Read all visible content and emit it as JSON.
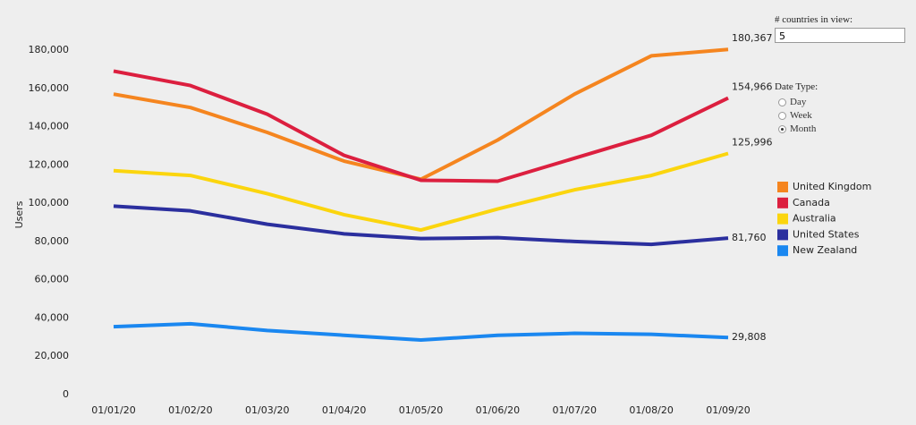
{
  "chart_data": {
    "type": "line",
    "y_label": "Users",
    "categories": [
      "01/01/20",
      "01/02/20",
      "01/03/20",
      "01/04/20",
      "01/05/20",
      "01/06/20",
      "01/07/20",
      "01/08/20",
      "01/09/20"
    ],
    "series": [
      {
        "name": "United Kingdom",
        "color": "#f5851f",
        "values": [
          157000,
          150000,
          137000,
          122000,
          112500,
          133000,
          157000,
          177000,
          180367
        ],
        "value_labels": [
          null,
          null,
          null,
          null,
          null,
          null,
          null,
          null,
          "180,367"
        ]
      },
      {
        "name": "Canada",
        "color": "#dc1f3f",
        "values": [
          169000,
          161500,
          146500,
          125000,
          112000,
          111500,
          123500,
          135500,
          154966
        ],
        "value_labels": [
          null,
          null,
          null,
          null,
          null,
          null,
          null,
          null,
          "154,966"
        ]
      },
      {
        "name": "Australia",
        "color": "#fbd50e",
        "values": [
          117000,
          114500,
          105000,
          94000,
          86000,
          97000,
          107000,
          114500,
          125996
        ],
        "value_labels": [
          null,
          null,
          null,
          null,
          null,
          null,
          null,
          null,
          "125,996"
        ]
      },
      {
        "name": "United States",
        "color": "#2b2f9e",
        "values": [
          98500,
          96000,
          89000,
          84000,
          81500,
          82000,
          80000,
          78500,
          81760
        ],
        "value_labels": [
          null,
          null,
          null,
          null,
          null,
          null,
          null,
          null,
          "81,760"
        ]
      },
      {
        "name": "New Zealand",
        "color": "#1a87f0",
        "values": [
          35500,
          37000,
          33500,
          31000,
          28500,
          31000,
          32000,
          31500,
          29808
        ],
        "value_labels": [
          null,
          null,
          null,
          null,
          null,
          null,
          null,
          null,
          "29,808"
        ]
      }
    ],
    "ylim": [
      0,
      180000
    ],
    "yticks": [
      0,
      {
        "value": 20000,
        "label": "20,000"
      },
      {
        "value": 40000,
        "label": "40,000"
      },
      {
        "value": 60000,
        "label": "60,000"
      },
      {
        "value": 80000,
        "label": "80,000"
      },
      {
        "value": 100000,
        "label": "100,000"
      },
      {
        "value": 120000,
        "label": "120,000"
      },
      {
        "value": 140000,
        "label": "140,000"
      },
      {
        "value": 160000,
        "label": "160,000"
      },
      {
        "value": 180000,
        "label": "180,000"
      }
    ],
    "grid": false,
    "legend": "right"
  },
  "controls": {
    "countries_label": "# countries in view:",
    "countries_value": 5,
    "date_type_label": "Date Type:",
    "date_type_options": [
      "Day",
      "Week",
      "Month"
    ],
    "date_type_selected": 2
  }
}
